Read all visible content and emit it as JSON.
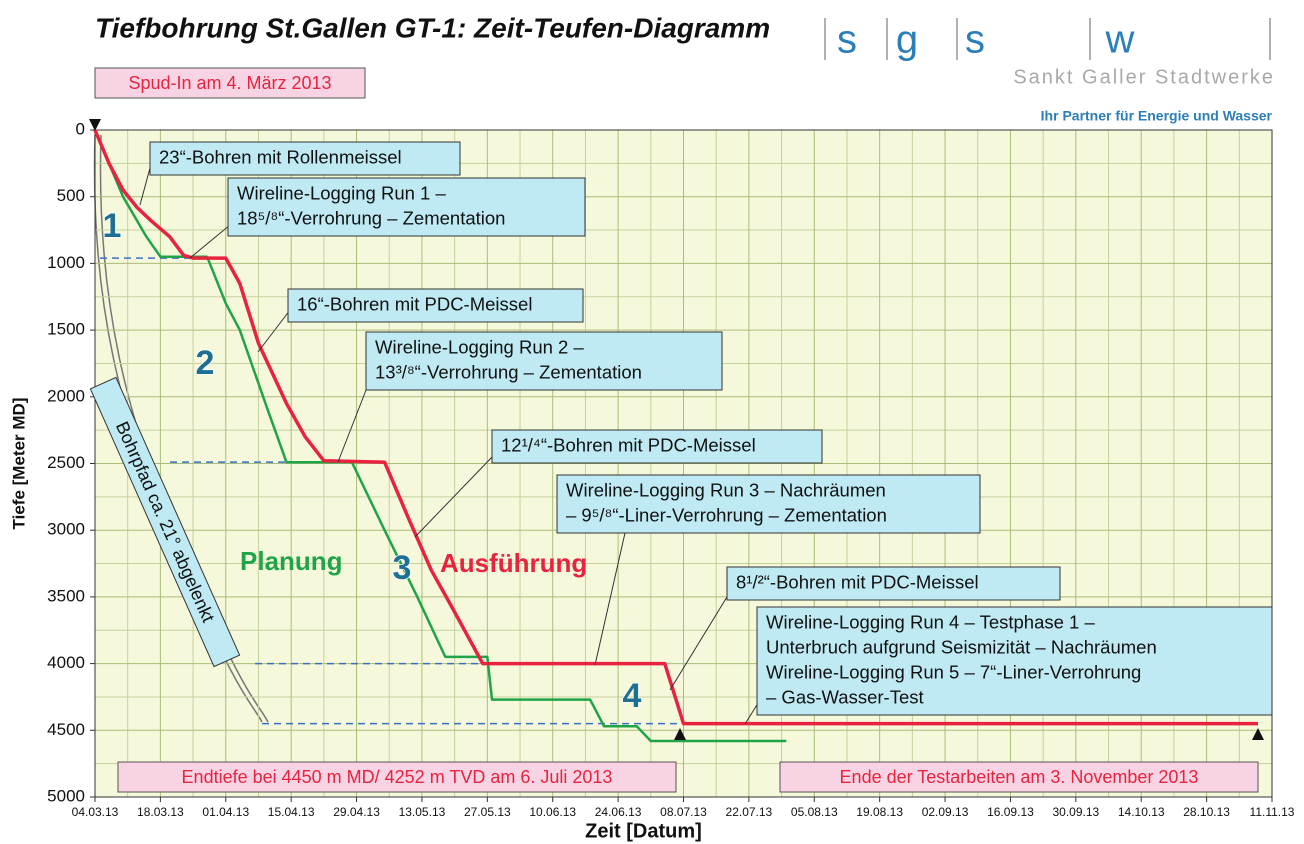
{
  "chart_data": {
    "type": "line",
    "title": "Tiefbohrung St.Gallen GT-1: Zeit-Teufen-Diagramm",
    "logo": {
      "letters": [
        "s",
        "g",
        "s",
        "w"
      ],
      "name": "Sankt Galler Stadtwerke",
      "slogan": "Ihr Partner für Energie und Wasser"
    },
    "x_label": "Zeit [Datum]",
    "y_label": "Tiefe [Meter MD]",
    "xlim": [
      "04.03.13",
      "11.11.13"
    ],
    "xticks": [
      "04.03.13",
      "18.03.13",
      "01.04.13",
      "15.04.13",
      "29.04.13",
      "13.05.13",
      "27.05.13",
      "10.06.13",
      "24.06.13",
      "08.07.13",
      "22.07.13",
      "05.08.13",
      "19.08.13",
      "02.09.13",
      "16.09.13",
      "30.09.13",
      "14.10.13",
      "28.10.13",
      "11.11.13"
    ],
    "ylim": [
      0,
      5000
    ],
    "yticks": [
      0,
      500,
      1000,
      1500,
      2000,
      2500,
      3000,
      3500,
      4000,
      4500,
      5000
    ],
    "y_inverted": true,
    "grid": true,
    "grid_minor": true,
    "series": [
      {
        "name": "Planung",
        "color": "#1fa447",
        "x": [
          "04.03.13",
          "10.03.13",
          "15.03.13",
          "18.03.13",
          "28.03.13",
          "01.04.13",
          "04.04.13",
          "10.04.13",
          "14.04.13",
          "28.04.13",
          "05.05.13",
          "12.05.13",
          "18.05.13",
          "27.05.13",
          "28.05.13",
          "18.06.13",
          "21.06.13",
          "28.06.13",
          "01.07.13",
          "30.07.13"
        ],
        "values": [
          0,
          500,
          800,
          950,
          950,
          1300,
          1500,
          2100,
          2490,
          2490,
          3000,
          3500,
          3950,
          3950,
          4270,
          4270,
          4470,
          4470,
          4580,
          4580
        ]
      },
      {
        "name": "Ausführung",
        "color": "#e8233f",
        "x": [
          "04.03.13",
          "07.03.13",
          "10.03.13",
          "13.03.13",
          "16.03.13",
          "20.03.13",
          "23.03.13",
          "25.03.13",
          "01.04.13",
          "04.04.13",
          "08.04.13",
          "14.04.13",
          "18.04.13",
          "22.04.13",
          "05.05.13",
          "10.05.13",
          "15.05.13",
          "19.05.13",
          "26.05.13",
          "04.07.13",
          "08.07.13",
          "08.11.13"
        ],
        "values": [
          0,
          250,
          450,
          580,
          680,
          800,
          940,
          960,
          960,
          1150,
          1600,
          2050,
          2300,
          2480,
          2490,
          2900,
          3300,
          3550,
          4000,
          4000,
          4450,
          4450
        ]
      }
    ],
    "reference_lines": {
      "color": "#3a6fc4",
      "values": [
        960,
        2490,
        4000,
        4450
      ]
    },
    "phase_labels": [
      "1",
      "2",
      "3",
      "4"
    ],
    "annotations": [
      {
        "lines": [
          "23“-Bohren mit Rollenmeissel"
        ]
      },
      {
        "lines": [
          "Wireline-Logging Run 1 –",
          "18⁵/⁸“-Verrohrung – Zementation"
        ]
      },
      {
        "lines": [
          "16“-Bohren mit PDC-Meissel"
        ]
      },
      {
        "lines": [
          "Wireline-Logging Run 2 –",
          "13³/⁸“-Verrohrung – Zementation"
        ]
      },
      {
        "lines": [
          "12¹/⁴“-Bohren mit PDC-Meissel"
        ]
      },
      {
        "lines": [
          "Wireline-Logging Run 3 – Nachräumen",
          "– 9⁵/⁸“-Liner-Verrohrung – Zementation"
        ]
      },
      {
        "lines": [
          "8¹/²“-Bohren mit PDC-Meissel"
        ]
      },
      {
        "lines": [
          "Wireline-Logging Run 4 – Testphase 1 –",
          "Unterbruch aufgrund Seismizität – Nachräumen",
          "Wireline-Logging Run 5 – 7“-Liner-Verrohrung",
          "– Gas-Wasser-Test"
        ]
      }
    ],
    "notes": [
      "Spud-In am 4. März 2013",
      "Endtiefe bei 4450 m MD/ 4252 m TVD am 6. Juli 2013",
      "Ende der Testarbeiten am 3. November 2013"
    ],
    "borehole_label": "Bohrpfad ca. 21° abgelenkt"
  }
}
